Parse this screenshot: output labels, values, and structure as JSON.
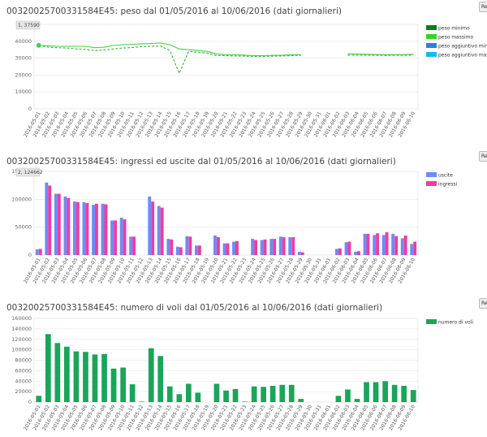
{
  "charts": [
    {
      "title": "00320025700331584E45: peso dal 01/05/2016 al 10/06/2016 (dati giornalieri)",
      "reset_label": "Re",
      "tooltip": "1, 37590",
      "legend": [
        {
          "name": "peso minimo",
          "color": "#0f7a1e"
        },
        {
          "name": "peso massimo",
          "color": "#39d12a"
        },
        {
          "name": "peso aggiuntivo min",
          "color": "#2f7ee0"
        },
        {
          "name": "peso aggiuntivo max",
          "color": "#19b8f2"
        }
      ]
    },
    {
      "title": "00320025700331584E45: ingressi ed uscite dal 01/05/2016 al 10/06/2016 (dati giornalieri)",
      "reset_label": "Re",
      "tooltip": "2, 124662",
      "legend": [
        {
          "name": "uscite",
          "color": "#6e8cf5"
        },
        {
          "name": "ingressi",
          "color": "#f03ca0"
        }
      ]
    },
    {
      "title": "00320025700331584E45: numero di voli dal 01/05/2016 al 10/06/2016 (dati giornalieri)",
      "reset_label": "Re",
      "tooltip": "",
      "legend": [
        {
          "name": "numero di voli",
          "color": "#1aa55a"
        }
      ]
    }
  ],
  "chart_data": [
    {
      "type": "line",
      "title": "00320025700331584E45: peso dal 01/05/2016 al 10/06/2016 (dati giornalieri)",
      "x": [
        "2016-05-01",
        "2016-05-02",
        "2016-05-03",
        "2016-05-04",
        "2016-05-05",
        "2016-05-06",
        "2016-05-07",
        "2016-05-08",
        "2016-05-09",
        "2016-05-10",
        "2016-05-11",
        "2016-05-12",
        "2016-05-13",
        "2016-05-14",
        "2016-05-15",
        "2016-05-16",
        "2016-05-17",
        "2016-05-18",
        "2016-05-19",
        "2016-05-20",
        "2016-05-21",
        "2016-05-22",
        "2016-05-23",
        "2016-05-24",
        "2016-05-25",
        "2016-05-26",
        "2016-05-27",
        "2016-05-28",
        "2016-05-29",
        "2016-05-30",
        "2016-05-31",
        "2016-06-01",
        "2016-06-02",
        "2016-06-03",
        "2016-06-04",
        "2016-06-05",
        "2016-06-06",
        "2016-06-07",
        "2016-06-08",
        "2016-06-09",
        "2016-06-10"
      ],
      "yticks": [
        0,
        10000,
        20000,
        30000,
        40000
      ],
      "ylim": [
        0,
        50000
      ],
      "grid": true,
      "legend_position": "right",
      "series": [
        {
          "name": "peso minimo",
          "color": "#2fb82f",
          "dashed": true,
          "values": [
            37590,
            36500,
            36200,
            36000,
            35500,
            35200,
            34500,
            34800,
            35500,
            36000,
            36300,
            36800,
            37000,
            37200,
            34500,
            21000,
            34000,
            33500,
            33000,
            31500,
            31500,
            31300,
            31200,
            31000,
            31000,
            31200,
            31300,
            31500,
            31700,
            null,
            null,
            null,
            null,
            31800,
            31800,
            31800,
            31700,
            31600,
            31700,
            31700,
            31800
          ]
        },
        {
          "name": "peso massimo",
          "color": "#44d044",
          "dashed": false,
          "values": [
            37590,
            37300,
            37000,
            37000,
            37000,
            37000,
            36200,
            36500,
            37500,
            38000,
            38200,
            38500,
            38700,
            39000,
            38000,
            35500,
            35000,
            34500,
            34000,
            32500,
            32000,
            32000,
            31800,
            31500,
            31500,
            31700,
            31800,
            32000,
            32000,
            null,
            null,
            null,
            null,
            32500,
            32500,
            32300,
            32200,
            32100,
            32100,
            32100,
            32300
          ]
        }
      ]
    },
    {
      "type": "bar",
      "title": "00320025700331584E45: ingressi ed uscite dal 01/05/2016 al 10/06/2016 (dati giornalieri)",
      "x": [
        "2016-05-01",
        "2016-05-02",
        "2016-05-03",
        "2016-05-04",
        "2016-05-05",
        "2016-05-06",
        "2016-05-07",
        "2016-05-08",
        "2016-05-09",
        "2016-05-10",
        "2016-05-11",
        "2016-05-12",
        "2016-05-13",
        "2016-05-14",
        "2016-05-15",
        "2016-05-16",
        "2016-05-17",
        "2016-05-18",
        "2016-05-19",
        "2016-05-20",
        "2016-05-21",
        "2016-05-22",
        "2016-05-23",
        "2016-05-24",
        "2016-05-25",
        "2016-05-26",
        "2016-05-27",
        "2016-05-28",
        "2016-05-29",
        "2016-05-30",
        "2016-05-31",
        "2016-06-01",
        "2016-06-02",
        "2016-06-03",
        "2016-06-04",
        "2016-06-05",
        "2016-06-06",
        "2016-06-07",
        "2016-06-08",
        "2016-06-09",
        "2016-06-10"
      ],
      "yticks": [
        0,
        50000,
        100000,
        150000
      ],
      "ylim": [
        0,
        150000
      ],
      "grid": true,
      "legend_position": "right",
      "series": [
        {
          "name": "uscite",
          "color": "#6e8cf5",
          "values": [
            10000,
            130000,
            110000,
            105000,
            96000,
            95000,
            90000,
            92000,
            62000,
            67000,
            33000,
            0,
            105000,
            88000,
            29000,
            15000,
            34000,
            17000,
            0,
            35000,
            21000,
            24000,
            0,
            29000,
            27000,
            29000,
            33000,
            32000,
            6000,
            0,
            0,
            0,
            11000,
            23000,
            6000,
            38000,
            36000,
            36000,
            38000,
            30000,
            20000
          ]
        },
        {
          "name": "ingressi",
          "color": "#f03ca0",
          "values": [
            11000,
            124662,
            110000,
            102000,
            95000,
            93000,
            92000,
            91000,
            62000,
            64000,
            33000,
            0,
            96000,
            85000,
            28000,
            14000,
            33000,
            17000,
            0,
            32000,
            21000,
            25000,
            0,
            27000,
            28000,
            29000,
            32000,
            32000,
            5000,
            0,
            0,
            0,
            12000,
            24000,
            7000,
            38000,
            39000,
            41000,
            34000,
            35000,
            24000
          ]
        }
      ]
    },
    {
      "type": "bar",
      "title": "00320025700331584E45: numero di voli dal 01/05/2016 al 10/06/2016 (dati giornalieri)",
      "x": [
        "2016-05-01",
        "2016-05-02",
        "2016-05-03",
        "2016-05-04",
        "2016-05-05",
        "2016-05-06",
        "2016-05-07",
        "2016-05-08",
        "2016-05-09",
        "2016-05-10",
        "2016-05-11",
        "2016-05-12",
        "2016-05-13",
        "2016-05-14",
        "2016-05-15",
        "2016-05-16",
        "2016-05-17",
        "2016-05-18",
        "2016-05-19",
        "2016-05-20",
        "2016-05-21",
        "2016-05-22",
        "2016-05-23",
        "2016-05-24",
        "2016-05-25",
        "2016-05-26",
        "2016-05-27",
        "2016-05-28",
        "2016-05-29",
        "2016-05-30",
        "2016-05-31",
        "2016-06-01",
        "2016-06-02",
        "2016-06-03",
        "2016-06-04",
        "2016-06-05",
        "2016-06-06",
        "2016-06-07",
        "2016-06-08",
        "2016-06-09",
        "2016-06-10"
      ],
      "yticks": [
        0,
        20000,
        40000,
        60000,
        80000,
        100000,
        120000,
        140000,
        160000
      ],
      "ylim": [
        0,
        160000
      ],
      "grid": true,
      "legend_position": "right",
      "series": [
        {
          "name": "numero di voli",
          "color": "#1aa55a",
          "values": [
            12000,
            130000,
            113000,
            106000,
            97000,
            96000,
            91000,
            92000,
            64000,
            66000,
            34000,
            1000,
            103000,
            88000,
            30000,
            15000,
            35000,
            18000,
            0,
            35000,
            22000,
            25000,
            1000,
            30000,
            29000,
            31000,
            33000,
            33000,
            6000,
            0,
            0,
            0,
            12000,
            24000,
            6000,
            38000,
            38000,
            40000,
            33000,
            31000,
            23000
          ]
        }
      ]
    }
  ]
}
